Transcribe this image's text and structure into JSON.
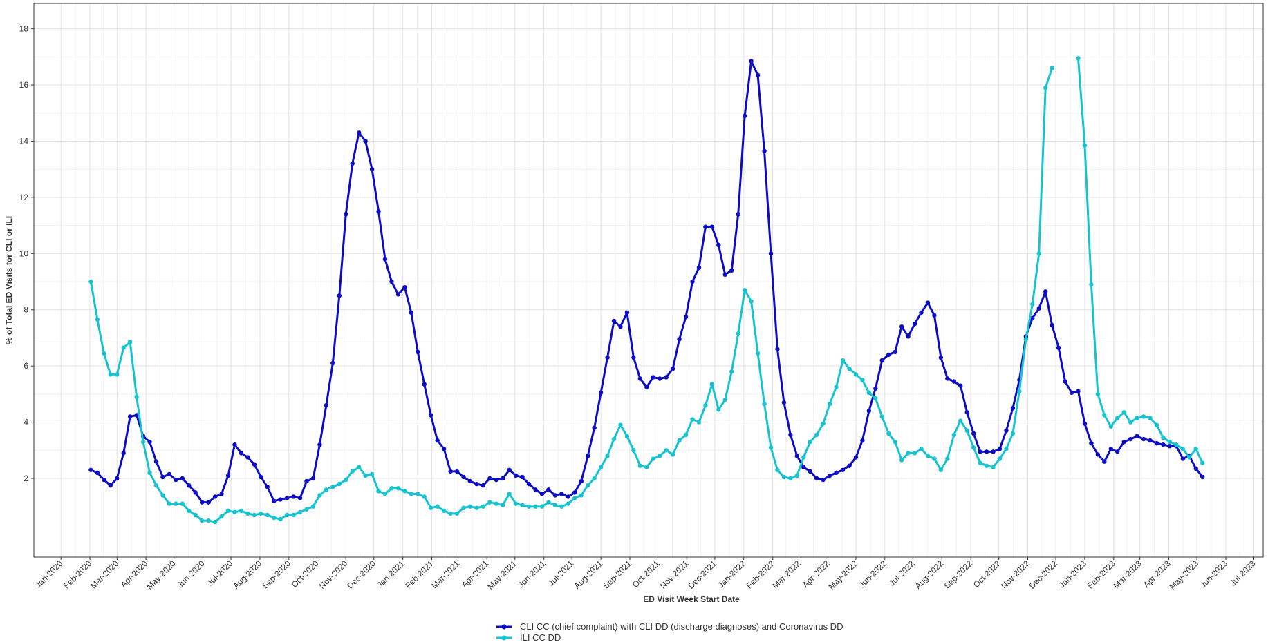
{
  "chart_data": {
    "type": "line",
    "xlabel": "ED Visit Week Start Date",
    "ylabel": "% of Total ED Visits for CLI or ILI",
    "x": [
      "2020-02-02",
      "2020-02-09",
      "2020-02-16",
      "2020-02-23",
      "2020-03-01",
      "2020-03-08",
      "2020-03-15",
      "2020-03-22",
      "2020-03-29",
      "2020-04-05",
      "2020-04-12",
      "2020-04-19",
      "2020-04-26",
      "2020-05-03",
      "2020-05-10",
      "2020-05-17",
      "2020-05-24",
      "2020-05-31",
      "2020-06-07",
      "2020-06-14",
      "2020-06-21",
      "2020-06-28",
      "2020-07-05",
      "2020-07-12",
      "2020-07-19",
      "2020-07-26",
      "2020-08-02",
      "2020-08-09",
      "2020-08-16",
      "2020-08-23",
      "2020-08-30",
      "2020-09-06",
      "2020-09-13",
      "2020-09-20",
      "2020-09-27",
      "2020-10-04",
      "2020-10-11",
      "2020-10-18",
      "2020-10-25",
      "2020-11-01",
      "2020-11-08",
      "2020-11-15",
      "2020-11-22",
      "2020-11-29",
      "2020-12-06",
      "2020-12-13",
      "2020-12-20",
      "2020-12-27",
      "2021-01-03",
      "2021-01-10",
      "2021-01-17",
      "2021-01-24",
      "2021-01-31",
      "2021-02-07",
      "2021-02-14",
      "2021-02-21",
      "2021-02-28",
      "2021-03-07",
      "2021-03-14",
      "2021-03-21",
      "2021-03-28",
      "2021-04-04",
      "2021-04-11",
      "2021-04-18",
      "2021-04-25",
      "2021-05-02",
      "2021-05-09",
      "2021-05-16",
      "2021-05-23",
      "2021-05-30",
      "2021-06-06",
      "2021-06-13",
      "2021-06-20",
      "2021-06-27",
      "2021-07-04",
      "2021-07-11",
      "2021-07-18",
      "2021-07-25",
      "2021-08-01",
      "2021-08-08",
      "2021-08-15",
      "2021-08-22",
      "2021-08-29",
      "2021-09-05",
      "2021-09-12",
      "2021-09-19",
      "2021-09-26",
      "2021-10-03",
      "2021-10-10",
      "2021-10-17",
      "2021-10-24",
      "2021-10-31",
      "2021-11-07",
      "2021-11-14",
      "2021-11-21",
      "2021-11-28",
      "2021-12-05",
      "2021-12-12",
      "2021-12-19",
      "2021-12-26",
      "2022-01-02",
      "2022-01-09",
      "2022-01-16",
      "2022-01-23",
      "2022-01-30",
      "2022-02-06",
      "2022-02-13",
      "2022-02-20",
      "2022-02-27",
      "2022-03-06",
      "2022-03-13",
      "2022-03-20",
      "2022-03-27",
      "2022-04-03",
      "2022-04-10",
      "2022-04-17",
      "2022-04-24",
      "2022-05-01",
      "2022-05-08",
      "2022-05-15",
      "2022-05-22",
      "2022-05-29",
      "2022-06-05",
      "2022-06-12",
      "2022-06-19",
      "2022-06-26",
      "2022-07-03",
      "2022-07-10",
      "2022-07-17",
      "2022-07-24",
      "2022-07-31",
      "2022-08-07",
      "2022-08-14",
      "2022-08-21",
      "2022-08-28",
      "2022-09-04",
      "2022-09-11",
      "2022-09-18",
      "2022-09-25",
      "2022-10-02",
      "2022-10-09",
      "2022-10-16",
      "2022-10-23",
      "2022-10-30",
      "2022-11-06",
      "2022-11-13",
      "2022-11-20",
      "2022-11-27",
      "2022-12-04",
      "2022-12-11",
      "2022-12-18",
      "2022-12-25",
      "2023-01-01",
      "2023-01-08",
      "2023-01-15",
      "2023-01-22",
      "2023-01-29",
      "2023-02-05",
      "2023-02-12",
      "2023-02-19",
      "2023-02-26",
      "2023-03-05",
      "2023-03-12",
      "2023-03-19",
      "2023-03-26",
      "2023-04-02",
      "2023-04-09",
      "2023-04-16",
      "2023-04-23",
      "2023-04-30",
      "2023-05-07"
    ],
    "series": [
      {
        "name": "CLI CC (chief complaint) with CLI DD (discharge diagnoses) and Coronavirus DD",
        "color": "#0c0cc4",
        "values": [
          2.3,
          2.2,
          1.95,
          1.75,
          2.0,
          2.9,
          4.2,
          4.25,
          3.5,
          3.3,
          2.6,
          2.05,
          2.15,
          1.95,
          2.0,
          1.75,
          1.5,
          1.15,
          1.15,
          1.35,
          1.45,
          2.1,
          3.2,
          2.9,
          2.75,
          2.5,
          2.05,
          1.7,
          1.2,
          1.25,
          1.3,
          1.35,
          1.3,
          1.9,
          2.0,
          3.2,
          4.6,
          6.1,
          8.5,
          11.4,
          13.2,
          14.3,
          14.0,
          13.0,
          11.5,
          9.8,
          9.0,
          8.55,
          8.8,
          7.9,
          6.5,
          5.35,
          4.25,
          3.35,
          3.05,
          2.25,
          2.25,
          2.05,
          1.9,
          1.8,
          1.75,
          2.0,
          1.95,
          2.0,
          2.3,
          2.1,
          2.05,
          1.8,
          1.6,
          1.45,
          1.6,
          1.4,
          1.45,
          1.35,
          1.5,
          1.9,
          2.8,
          3.8,
          5.05,
          6.3,
          7.6,
          7.4,
          7.9,
          6.3,
          5.55,
          5.25,
          5.6,
          5.55,
          5.6,
          5.9,
          6.95,
          7.75,
          9.0,
          9.5,
          10.95,
          10.95,
          10.3,
          9.25,
          9.4,
          11.4,
          14.9,
          16.85,
          16.35,
          13.65,
          10.0,
          6.6,
          4.7,
          3.55,
          2.8,
          2.4,
          2.25,
          2.0,
          1.95,
          2.1,
          2.2,
          2.3,
          2.45,
          2.75,
          3.35,
          4.4,
          5.2,
          6.2,
          6.4,
          6.5,
          7.4,
          7.05,
          7.5,
          7.9,
          8.25,
          7.8,
          6.3,
          5.55,
          5.45,
          5.3,
          4.35,
          3.6,
          2.95,
          2.95,
          2.95,
          3.05,
          3.7,
          4.5,
          5.5,
          7.05,
          7.7,
          8.05,
          8.65,
          7.45,
          6.65,
          5.45,
          5.05,
          5.1,
          3.95,
          3.25,
          2.85,
          2.6,
          3.05,
          2.95,
          3.3,
          3.4,
          3.5,
          3.4,
          3.35,
          3.25,
          3.2,
          3.15,
          3.15,
          2.7,
          2.8,
          2.35,
          2.05
        ]
      },
      {
        "name": "ILI CC DD",
        "color": "#17c3cf",
        "values": [
          9.0,
          7.65,
          6.45,
          5.7,
          5.7,
          6.65,
          6.85,
          4.9,
          3.3,
          2.2,
          1.75,
          1.4,
          1.1,
          1.1,
          1.1,
          0.85,
          0.7,
          0.5,
          0.5,
          0.45,
          0.65,
          0.85,
          0.8,
          0.85,
          0.75,
          0.7,
          0.75,
          0.7,
          0.6,
          0.55,
          0.7,
          0.7,
          0.8,
          0.9,
          1.0,
          1.4,
          1.6,
          1.7,
          1.8,
          1.95,
          2.25,
          2.4,
          2.1,
          2.15,
          1.55,
          1.45,
          1.65,
          1.65,
          1.55,
          1.45,
          1.45,
          1.35,
          0.95,
          1.0,
          0.85,
          0.75,
          0.75,
          0.95,
          1.0,
          0.95,
          1.0,
          1.15,
          1.1,
          1.05,
          1.45,
          1.1,
          1.05,
          1.0,
          1.0,
          1.0,
          1.15,
          1.05,
          1.0,
          1.1,
          1.3,
          1.4,
          1.75,
          2.0,
          2.4,
          2.8,
          3.4,
          3.9,
          3.5,
          3.0,
          2.45,
          2.4,
          2.7,
          2.8,
          3.0,
          2.85,
          3.35,
          3.55,
          4.1,
          4.0,
          4.6,
          5.35,
          4.45,
          4.8,
          5.8,
          7.15,
          8.7,
          8.3,
          6.45,
          4.65,
          3.1,
          2.3,
          2.05,
          2.0,
          2.1,
          2.75,
          3.3,
          3.55,
          3.95,
          4.65,
          5.25,
          6.2,
          5.9,
          5.7,
          5.5,
          5.05,
          4.85,
          4.2,
          3.6,
          3.3,
          2.65,
          2.9,
          2.9,
          3.05,
          2.8,
          2.7,
          2.3,
          2.7,
          3.55,
          4.05,
          3.7,
          3.1,
          2.55,
          2.45,
          2.4,
          2.7,
          3.05,
          3.6,
          5.1,
          6.95,
          8.2,
          10.0,
          15.9,
          16.6,
          null,
          null,
          null,
          16.95,
          13.85,
          8.9,
          5.0,
          4.25,
          3.85,
          4.15,
          4.35,
          4.0,
          4.15,
          4.2,
          4.15,
          3.9,
          3.45,
          3.3,
          3.2,
          3.05,
          2.75,
          3.05,
          2.55
        ]
      }
    ],
    "xlim": [
      "2019-12-03",
      "2023-07-11"
    ],
    "xticks": [
      {
        "value": "2020-01-01",
        "label": "Jan-2020"
      },
      {
        "value": "2020-02-01",
        "label": "Feb-2020"
      },
      {
        "value": "2020-03-01",
        "label": "Mar-2020"
      },
      {
        "value": "2020-04-01",
        "label": "Apr-2020"
      },
      {
        "value": "2020-05-01",
        "label": "May-2020"
      },
      {
        "value": "2020-06-01",
        "label": "Jun-2020"
      },
      {
        "value": "2020-07-01",
        "label": "Jul-2020"
      },
      {
        "value": "2020-08-01",
        "label": "Aug-2020"
      },
      {
        "value": "2020-09-01",
        "label": "Sep-2020"
      },
      {
        "value": "2020-10-01",
        "label": "Oct-2020"
      },
      {
        "value": "2020-11-01",
        "label": "Nov-2020"
      },
      {
        "value": "2020-12-01",
        "label": "Dec-2020"
      },
      {
        "value": "2021-01-01",
        "label": "Jan-2021"
      },
      {
        "value": "2021-02-01",
        "label": "Feb-2021"
      },
      {
        "value": "2021-03-01",
        "label": "Mar-2021"
      },
      {
        "value": "2021-04-01",
        "label": "Apr-2021"
      },
      {
        "value": "2021-05-01",
        "label": "May-2021"
      },
      {
        "value": "2021-06-01",
        "label": "Jun-2021"
      },
      {
        "value": "2021-07-01",
        "label": "Jul-2021"
      },
      {
        "value": "2021-08-01",
        "label": "Aug-2021"
      },
      {
        "value": "2021-09-01",
        "label": "Sep-2021"
      },
      {
        "value": "2021-10-01",
        "label": "Oct-2021"
      },
      {
        "value": "2021-11-01",
        "label": "Nov-2021"
      },
      {
        "value": "2021-12-01",
        "label": "Dec-2021"
      },
      {
        "value": "2022-01-01",
        "label": "Jan-2022"
      },
      {
        "value": "2022-02-01",
        "label": "Feb-2022"
      },
      {
        "value": "2022-03-01",
        "label": "Mar-2022"
      },
      {
        "value": "2022-04-01",
        "label": "Apr-2022"
      },
      {
        "value": "2022-05-01",
        "label": "May-2022"
      },
      {
        "value": "2022-06-01",
        "label": "Jun-2022"
      },
      {
        "value": "2022-07-01",
        "label": "Jul-2022"
      },
      {
        "value": "2022-08-01",
        "label": "Aug-2022"
      },
      {
        "value": "2022-09-01",
        "label": "Sep-2022"
      },
      {
        "value": "2022-10-01",
        "label": "Oct-2022"
      },
      {
        "value": "2022-11-01",
        "label": "Nov-2022"
      },
      {
        "value": "2022-12-01",
        "label": "Dec-2022"
      },
      {
        "value": "2023-01-01",
        "label": "Jan-2023"
      },
      {
        "value": "2023-02-01",
        "label": "Feb-2023"
      },
      {
        "value": "2023-03-01",
        "label": "Mar-2023"
      },
      {
        "value": "2023-04-01",
        "label": "Apr-2023"
      },
      {
        "value": "2023-05-01",
        "label": "May-2023"
      },
      {
        "value": "2023-06-01",
        "label": "Jun-2023"
      },
      {
        "value": "2023-07-01",
        "label": "Jul-2023"
      }
    ],
    "ylim": [
      -0.8,
      18.9
    ],
    "yticks": [
      2,
      4,
      6,
      8,
      10,
      12,
      14,
      16,
      18
    ],
    "grid": true,
    "legend": "bottom"
  }
}
